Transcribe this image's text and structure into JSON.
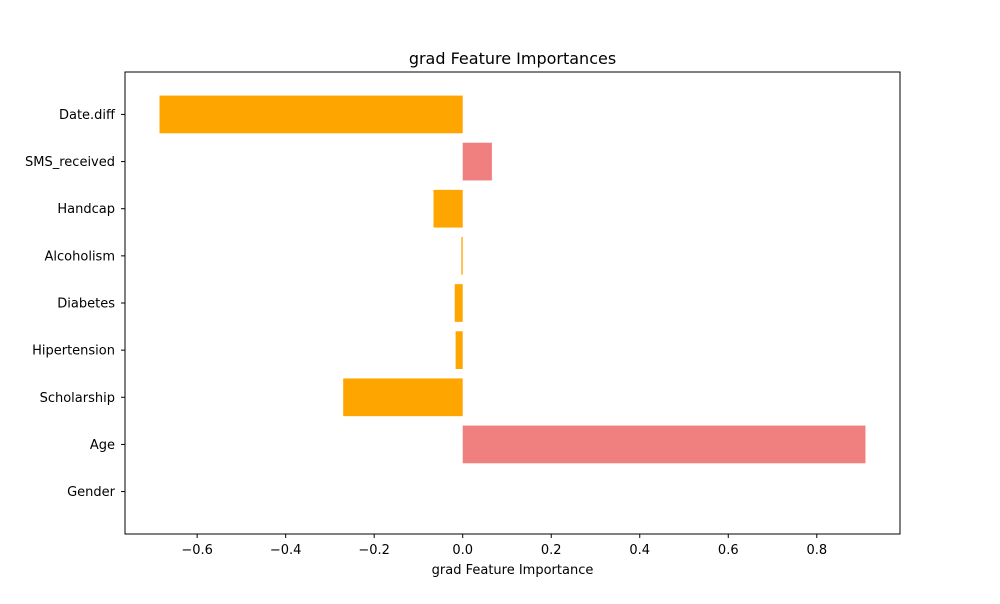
{
  "chart_data": {
    "type": "bar",
    "orientation": "horizontal",
    "title": "grad Feature Importances",
    "xlabel": "grad Feature Importance",
    "ylabel": "",
    "categories": [
      "Gender",
      "Age",
      "Scholarship",
      "Hipertension",
      "Diabetes",
      "Alcoholism",
      "Handcap",
      "SMS_received",
      "Date.diff"
    ],
    "values": [
      0.0,
      0.91,
      -0.27,
      -0.016,
      -0.018,
      -0.003,
      -0.066,
      0.066,
      -0.685
    ],
    "xlim": [
      -0.763,
      0.988
    ],
    "xticks": [
      -0.6,
      -0.4,
      -0.2,
      0.0,
      0.2,
      0.4,
      0.6,
      0.8
    ],
    "xtick_labels": [
      "−0.6",
      "−0.4",
      "−0.2",
      "0.0",
      "0.2",
      "0.4",
      "0.6",
      "0.8"
    ],
    "grid": false,
    "colors": {
      "positive": "#f08080",
      "negative": "#ffa500"
    }
  }
}
